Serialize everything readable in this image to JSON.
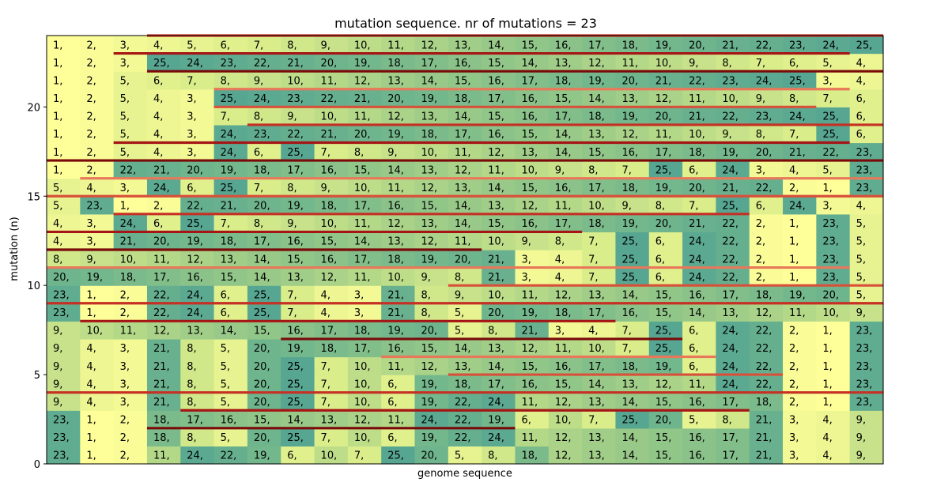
{
  "chart_data": {
    "type": "heatmap",
    "title": "mutation sequence. nr of mutations = 23",
    "xlabel": "genome sequence",
    "ylabel": "mutation (n)",
    "yticks": [
      0,
      5,
      10,
      15,
      20
    ],
    "ylim": [
      0,
      24
    ],
    "colormap": "yellow-green (low=yellow, high=teal)",
    "grid": false,
    "rows": [
      [
        23,
        1,
        2,
        11,
        24,
        22,
        19,
        6,
        10,
        7,
        25,
        20,
        5,
        8,
        18,
        12,
        13,
        14,
        15,
        16,
        17,
        21,
        3,
        4,
        9
      ],
      [
        23,
        1,
        2,
        18,
        8,
        5,
        20,
        25,
        7,
        10,
        6,
        19,
        22,
        24,
        11,
        12,
        13,
        14,
        15,
        16,
        17,
        21,
        3,
        4,
        9
      ],
      [
        23,
        1,
        2,
        18,
        17,
        16,
        15,
        14,
        13,
        12,
        11,
        24,
        22,
        19,
        6,
        10,
        7,
        25,
        20,
        5,
        8,
        21,
        3,
        4,
        9
      ],
      [
        9,
        4,
        3,
        21,
        8,
        5,
        20,
        25,
        7,
        10,
        6,
        19,
        22,
        24,
        11,
        12,
        13,
        14,
        15,
        16,
        17,
        18,
        2,
        1,
        23
      ],
      [
        9,
        4,
        3,
        21,
        8,
        5,
        20,
        25,
        7,
        10,
        6,
        19,
        18,
        17,
        16,
        15,
        14,
        13,
        12,
        11,
        24,
        22,
        2,
        1,
        23
      ],
      [
        9,
        4,
        3,
        21,
        8,
        5,
        20,
        25,
        7,
        10,
        11,
        12,
        13,
        14,
        15,
        16,
        17,
        18,
        19,
        6,
        24,
        22,
        2,
        1,
        23
      ],
      [
        9,
        4,
        3,
        21,
        8,
        5,
        20,
        19,
        18,
        17,
        16,
        15,
        14,
        13,
        12,
        11,
        10,
        7,
        25,
        6,
        24,
        22,
        2,
        1,
        23
      ],
      [
        9,
        10,
        11,
        12,
        13,
        14,
        15,
        16,
        17,
        18,
        19,
        20,
        5,
        8,
        21,
        3,
        4,
        7,
        25,
        6,
        24,
        22,
        2,
        1,
        23
      ],
      [
        23,
        1,
        2,
        22,
        24,
        6,
        25,
        7,
        4,
        3,
        21,
        8,
        5,
        20,
        19,
        18,
        17,
        16,
        15,
        14,
        13,
        12,
        11,
        10,
        9
      ],
      [
        23,
        1,
        2,
        22,
        24,
        6,
        25,
        7,
        4,
        3,
        21,
        8,
        9,
        10,
        11,
        12,
        13,
        14,
        15,
        16,
        17,
        18,
        19,
        20,
        5
      ],
      [
        20,
        19,
        18,
        17,
        16,
        15,
        14,
        13,
        12,
        11,
        10,
        9,
        8,
        21,
        3,
        4,
        7,
        25,
        6,
        24,
        22,
        2,
        1,
        23,
        5
      ],
      [
        8,
        9,
        10,
        11,
        12,
        13,
        14,
        15,
        16,
        17,
        18,
        19,
        20,
        21,
        3,
        4,
        7,
        25,
        6,
        24,
        22,
        2,
        1,
        23,
        5
      ],
      [
        4,
        3,
        21,
        20,
        19,
        18,
        17,
        16,
        15,
        14,
        13,
        12,
        11,
        10,
        9,
        8,
        7,
        25,
        6,
        24,
        22,
        2,
        1,
        23,
        5
      ],
      [
        4,
        3,
        24,
        6,
        25,
        7,
        8,
        9,
        10,
        11,
        12,
        13,
        14,
        15,
        16,
        17,
        18,
        19,
        20,
        21,
        22,
        2,
        1,
        23,
        5
      ],
      [
        5,
        23,
        1,
        2,
        22,
        21,
        20,
        19,
        18,
        17,
        16,
        15,
        14,
        13,
        12,
        11,
        10,
        9,
        8,
        7,
        25,
        6,
        24,
        3,
        4
      ],
      [
        5,
        4,
        3,
        24,
        6,
        25,
        7,
        8,
        9,
        10,
        11,
        12,
        13,
        14,
        15,
        16,
        17,
        18,
        19,
        20,
        21,
        22,
        2,
        1,
        23
      ],
      [
        1,
        2,
        22,
        21,
        20,
        19,
        18,
        17,
        16,
        15,
        14,
        13,
        12,
        11,
        10,
        9,
        8,
        7,
        25,
        6,
        24,
        3,
        4,
        5,
        23
      ],
      [
        1,
        2,
        5,
        4,
        3,
        24,
        6,
        25,
        7,
        8,
        9,
        10,
        11,
        12,
        13,
        14,
        15,
        16,
        17,
        18,
        19,
        20,
        21,
        22,
        23
      ],
      [
        1,
        2,
        5,
        4,
        3,
        24,
        23,
        22,
        21,
        20,
        19,
        18,
        17,
        16,
        15,
        14,
        13,
        12,
        11,
        10,
        9,
        8,
        7,
        25,
        6
      ],
      [
        1,
        2,
        5,
        4,
        3,
        7,
        8,
        9,
        10,
        11,
        12,
        13,
        14,
        15,
        16,
        17,
        18,
        19,
        20,
        21,
        22,
        23,
        24,
        25,
        6
      ],
      [
        1,
        2,
        5,
        4,
        3,
        25,
        24,
        23,
        22,
        21,
        20,
        19,
        18,
        17,
        16,
        15,
        14,
        13,
        12,
        11,
        10,
        9,
        8,
        7,
        6
      ],
      [
        1,
        2,
        5,
        6,
        7,
        8,
        9,
        10,
        11,
        12,
        13,
        14,
        15,
        16,
        17,
        18,
        19,
        20,
        21,
        22,
        23,
        24,
        25,
        3,
        4
      ],
      [
        1,
        2,
        3,
        25,
        24,
        23,
        22,
        21,
        20,
        19,
        18,
        17,
        16,
        15,
        14,
        13,
        12,
        11,
        10,
        9,
        8,
        7,
        6,
        5,
        4
      ],
      [
        1,
        2,
        3,
        4,
        5,
        6,
        7,
        8,
        9,
        10,
        11,
        12,
        13,
        14,
        15,
        16,
        17,
        18,
        19,
        20,
        21,
        22,
        23,
        24,
        25
      ]
    ],
    "mutation_segments": [
      {
        "row": 1,
        "from_col": 3,
        "to_col": 14
      },
      {
        "row": 2,
        "from_col": 4,
        "to_col": 21
      },
      {
        "row": 3,
        "from_col": 0,
        "to_col": 25
      },
      {
        "row": 4,
        "from_col": 12,
        "to_col": 22
      },
      {
        "row": 5,
        "from_col": 10,
        "to_col": 20
      },
      {
        "row": 6,
        "from_col": 7,
        "to_col": 19
      },
      {
        "row": 7,
        "from_col": 1,
        "to_col": 17
      },
      {
        "row": 8,
        "from_col": 0,
        "to_col": 25
      },
      {
        "row": 9,
        "from_col": 12,
        "to_col": 25
      },
      {
        "row": 10,
        "from_col": 0,
        "to_col": 24
      },
      {
        "row": 11,
        "from_col": 0,
        "to_col": 13
      },
      {
        "row": 12,
        "from_col": 0,
        "to_col": 16
      },
      {
        "row": 13,
        "from_col": 2,
        "to_col": 21
      },
      {
        "row": 14,
        "from_col": 0,
        "to_col": 25
      },
      {
        "row": 15,
        "from_col": 1,
        "to_col": 25
      },
      {
        "row": 16,
        "from_col": 0,
        "to_col": 25
      },
      {
        "row": 17,
        "from_col": 2,
        "to_col": 24
      },
      {
        "row": 18,
        "from_col": 6,
        "to_col": 25
      },
      {
        "row": 19,
        "from_col": 5,
        "to_col": 23
      },
      {
        "row": 20,
        "from_col": 5,
        "to_col": 24
      },
      {
        "row": 21,
        "from_col": 3,
        "to_col": 25
      },
      {
        "row": 22,
        "from_col": 2,
        "to_col": 24
      },
      {
        "row": 23,
        "from_col": 3,
        "to_col": 25
      }
    ]
  }
}
